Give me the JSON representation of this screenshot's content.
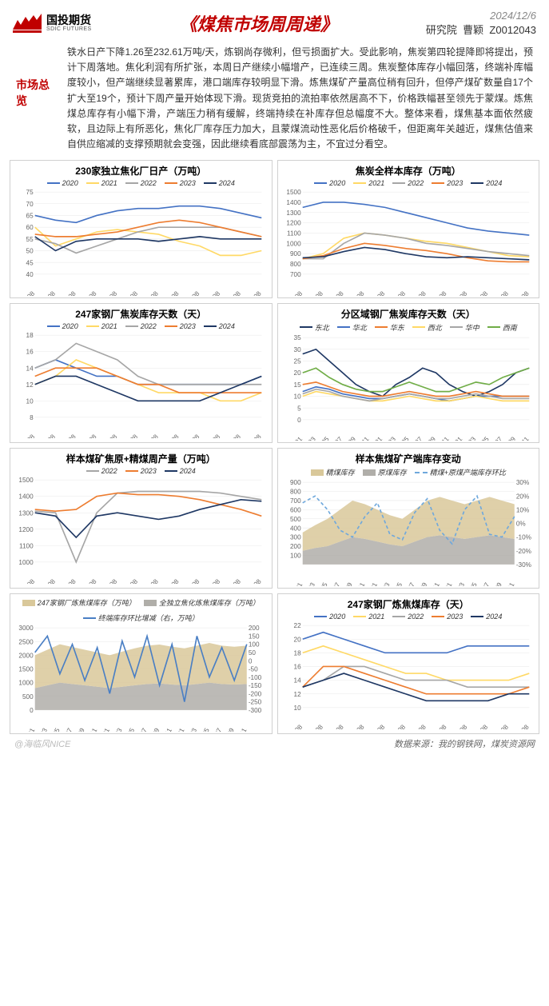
{
  "header": {
    "logo_cn": "国投期货",
    "logo_en": "SDIC FUTURES",
    "title": "《煤焦市场周周递》",
    "date": "2024/12/6",
    "dept": "研究院",
    "author": "曹颖",
    "code": "Z0012043"
  },
  "overview": {
    "label": "市场总览",
    "text": "铁水日产下降1.26至232.61万吨/天，炼钢尚存微利，但亏损面扩大。受此影响，焦炭第四轮提降即将提出，预计下周落地。焦化利润有所扩张，本周日产继续小幅增产，已连续三周。焦炭整体库存小幅回落，终端补库幅度较小，但产端继续显著累库，港口端库存较明显下滑。炼焦煤矿产量高位稍有回升，但停产煤矿数量自17个扩大至19个，预计下周产量开始体现下滑。现货竞拍的流拍率依然居高不下，价格跌幅甚至领先于蒙煤。炼焦煤总库存有小幅下滑，产端压力稍有缓解，终端持续在补库存但总幅度不大。整体来看，煤焦基本面依然疲软，且边际上有所恶化，焦化厂库存压力加大，且蒙煤流动性恶化后价格破千，但距离年关越近，煤焦估值来自供应缩减的支撑预期就会变强，因此继续看底部震荡为主，不宜过分看空。"
  },
  "colors": {
    "c2020": "#4472c4",
    "c2021": "#ffd966",
    "c2022": "#a6a6a6",
    "c2023": "#ed7d31",
    "c2024": "#1f3864",
    "grid": "#e8e8e8",
    "axis": "#666666",
    "area_beige": "#d9c89a",
    "area_gray": "#b0aea9",
    "line_blue": "#4a7fc4",
    "dash_blue": "#6fa8dc",
    "r_ne": "#1f3864",
    "r_nc": "#4472c4",
    "r_ec": "#ed7d31",
    "r_nw": "#ffd966",
    "r_cc": "#a6a6a6",
    "r_sw": "#70ad47"
  },
  "months": [
    "01-08",
    "02-08",
    "03-08",
    "04-08",
    "05-08",
    "06-08",
    "07-08",
    "08-08",
    "09-08",
    "10-08",
    "11-08",
    "12-08"
  ],
  "long_months": [
    "2022-01",
    "2022-03",
    "2022-05",
    "2022-07",
    "2022-09",
    "2022-11",
    "2023-01",
    "2023-03",
    "2023-05",
    "2023-07",
    "2023-09",
    "2023-11",
    "2024-01",
    "2024-03",
    "2024-05",
    "2024-07",
    "2024-09",
    "2024-11"
  ],
  "charts": {
    "c1": {
      "title": "230家独立焦化厂日产（万吨）",
      "ylim": [
        40,
        75
      ],
      "yticks": [
        40,
        45,
        50,
        55,
        60,
        65,
        70,
        75
      ],
      "series": {
        "2020": [
          65,
          63,
          62,
          65,
          67,
          68,
          68,
          69,
          69,
          68,
          66,
          64
        ],
        "2021": [
          60,
          52,
          55,
          58,
          59,
          58,
          57,
          54,
          52,
          48,
          48,
          50
        ],
        "2022": [
          55,
          53,
          49,
          52,
          55,
          58,
          60,
          60,
          60,
          60,
          58,
          56
        ],
        "2023": [
          57,
          56,
          56,
          57,
          58,
          60,
          62,
          63,
          62,
          60,
          58,
          56
        ],
        "2024": [
          56,
          50,
          54,
          55,
          55,
          55,
          54,
          55,
          56,
          55,
          55,
          55
        ]
      }
    },
    "c2": {
      "title": "焦炭全样本库存（万吨）",
      "ylim": [
        700,
        1500
      ],
      "yticks": [
        700,
        800,
        900,
        1000,
        1100,
        1200,
        1300,
        1400,
        1500
      ],
      "series": {
        "2020": [
          1350,
          1400,
          1400,
          1380,
          1350,
          1300,
          1250,
          1200,
          1150,
          1120,
          1100,
          1080
        ],
        "2021": [
          850,
          900,
          1050,
          1100,
          1080,
          1050,
          1020,
          1000,
          960,
          920,
          880,
          870
        ],
        "2022": [
          850,
          850,
          1000,
          1100,
          1080,
          1050,
          1000,
          980,
          950,
          920,
          900,
          880
        ],
        "2023": [
          850,
          880,
          950,
          1000,
          980,
          950,
          930,
          900,
          860,
          830,
          820,
          820
        ],
        "2024": [
          860,
          870,
          920,
          960,
          940,
          900,
          870,
          860,
          870,
          860,
          850,
          840
        ]
      }
    },
    "c3": {
      "title": "247家钢厂焦炭库存天数（天）",
      "ylim": [
        8,
        18
      ],
      "yticks": [
        8,
        10,
        12,
        14,
        16,
        18
      ],
      "series": {
        "2020": [
          14,
          15,
          14,
          13,
          13,
          12,
          12,
          12,
          12,
          12,
          12,
          13
        ],
        "2021": [
          12,
          13,
          15,
          14,
          13,
          12,
          11,
          11,
          11,
          10,
          10,
          11
        ],
        "2022": [
          14,
          15,
          17,
          16,
          15,
          13,
          12,
          12,
          12,
          12,
          12,
          12
        ],
        "2023": [
          13,
          14,
          14,
          14,
          13,
          12,
          12,
          11,
          11,
          11,
          11,
          11
        ],
        "2024": [
          12,
          13,
          13,
          12,
          11,
          10,
          10,
          10,
          10,
          11,
          12,
          13
        ]
      }
    },
    "c4": {
      "title": "分区域钢厂焦炭库存天数（天）",
      "ylim": [
        0,
        35
      ],
      "yticks": [
        0,
        5,
        10,
        15,
        20,
        25,
        30,
        35
      ],
      "legend": [
        {
          "k": "r_ne",
          "t": "东北"
        },
        {
          "k": "r_nc",
          "t": "华北"
        },
        {
          "k": "r_ec",
          "t": "华东"
        },
        {
          "k": "r_nw",
          "t": "西北"
        },
        {
          "k": "r_cc",
          "t": "华中"
        },
        {
          "k": "r_sw",
          "t": "西南"
        }
      ],
      "series": {
        "r_ne": [
          28,
          30,
          25,
          20,
          15,
          12,
          10,
          15,
          18,
          22,
          20,
          15,
          12,
          10,
          12,
          15,
          20,
          22
        ],
        "r_nc": [
          12,
          14,
          13,
          11,
          10,
          9,
          9,
          10,
          11,
          10,
          9,
          8,
          9,
          10,
          10,
          10,
          10,
          10
        ],
        "r_ec": [
          15,
          16,
          14,
          12,
          11,
          10,
          10,
          11,
          12,
          11,
          10,
          10,
          11,
          12,
          11,
          10,
          10,
          10
        ],
        "r_nw": [
          10,
          12,
          11,
          10,
          9,
          8,
          8,
          9,
          10,
          9,
          8,
          8,
          9,
          10,
          9,
          8,
          8,
          8
        ],
        "r_cc": [
          11,
          13,
          12,
          10,
          9,
          8,
          9,
          10,
          11,
          10,
          9,
          9,
          10,
          11,
          10,
          9,
          9,
          9
        ],
        "r_sw": [
          20,
          22,
          18,
          15,
          13,
          12,
          12,
          14,
          16,
          14,
          12,
          12,
          14,
          16,
          15,
          18,
          20,
          22
        ]
      }
    },
    "c5": {
      "title": "样本煤矿焦原+精煤周产量（万吨）",
      "ylim": [
        1000,
        1500
      ],
      "yticks": [
        1000,
        1100,
        1200,
        1300,
        1400,
        1500
      ],
      "series": {
        "2022": [
          1310,
          1300,
          1000,
          1300,
          1420,
          1430,
          1430,
          1430,
          1430,
          1420,
          1400,
          1380
        ],
        "2023": [
          1320,
          1310,
          1320,
          1400,
          1420,
          1410,
          1410,
          1400,
          1380,
          1350,
          1320,
          1280
        ],
        "2024": [
          1300,
          1280,
          1150,
          1280,
          1300,
          1280,
          1260,
          1280,
          1320,
          1350,
          1380,
          1370
        ]
      }
    },
    "c6": {
      "title": "样本焦煤矿产端库存变动",
      "ylim": [
        0,
        900
      ],
      "yticks": [
        100,
        200,
        300,
        400,
        500,
        600,
        700,
        800,
        900
      ],
      "ylim2": [
        -30,
        30
      ],
      "yticks2": [
        -30,
        -20,
        -10,
        0,
        10,
        20,
        30
      ],
      "legend": [
        {
          "k": "area_beige",
          "t": "精煤库存",
          "type": "area"
        },
        {
          "k": "area_gray",
          "t": "原煤库存",
          "type": "area"
        },
        {
          "k": "dash_blue",
          "t": "精煤+原煤产端库存环比",
          "type": "dash"
        }
      ],
      "series": {
        "jing": [
          200,
          250,
          300,
          350,
          400,
          380,
          350,
          320,
          300,
          350,
          400,
          420,
          400,
          380,
          400,
          420,
          400,
          380
        ],
        "yuan": [
          150,
          180,
          200,
          250,
          300,
          280,
          250,
          220,
          200,
          250,
          300,
          320,
          300,
          280,
          300,
          320,
          300,
          280
        ],
        "ratio": [
          15,
          20,
          10,
          -5,
          -10,
          5,
          15,
          -8,
          -12,
          8,
          18,
          -5,
          -15,
          10,
          20,
          -8,
          -10,
          5
        ]
      }
    },
    "c7": {
      "title": "",
      "ylim": [
        0,
        3000
      ],
      "yticks": [
        0,
        500,
        1000,
        1500,
        2000,
        2500,
        3000
      ],
      "ylim2": [
        -300,
        200
      ],
      "yticks2": [
        -300,
        -250,
        -200,
        -150,
        -100,
        -50,
        0,
        50,
        100,
        150,
        200
      ],
      "legend": [
        {
          "k": "area_beige",
          "t": "247家钢厂炼焦煤库存（万吨）",
          "type": "area"
        },
        {
          "k": "area_gray",
          "t": "全独立焦化炼焦煤库存（万吨）",
          "type": "area"
        },
        {
          "k": "line_blue",
          "t": "终端库存环比增减（右，万吨）",
          "type": "line"
        }
      ],
      "series": {
        "steel": [
          1200,
          1300,
          1400,
          1350,
          1300,
          1250,
          1200,
          1280,
          1350,
          1400,
          1420,
          1380,
          1350,
          1400,
          1450,
          1400,
          1380,
          1400
        ],
        "coke": [
          800,
          900,
          1000,
          950,
          900,
          850,
          800,
          850,
          900,
          950,
          970,
          930,
          900,
          950,
          1000,
          950,
          930,
          950
        ],
        "delta": [
          50,
          150,
          -80,
          100,
          -120,
          80,
          -200,
          120,
          -100,
          150,
          -150,
          100,
          -250,
          150,
          -100,
          80,
          -120,
          100
        ]
      }
    },
    "c8": {
      "title": "247家钢厂炼焦煤库存（天）",
      "ylim": [
        10,
        22
      ],
      "yticks": [
        10,
        12,
        14,
        16,
        18,
        20,
        22
      ],
      "series": {
        "2020": [
          20,
          21,
          20,
          19,
          18,
          18,
          18,
          18,
          19,
          19,
          19,
          19
        ],
        "2021": [
          18,
          19,
          18,
          17,
          16,
          15,
          15,
          14,
          14,
          14,
          14,
          15
        ],
        "2022": [
          13,
          14,
          16,
          16,
          15,
          14,
          14,
          14,
          13,
          13,
          13,
          13
        ],
        "2023": [
          13,
          16,
          16,
          15,
          14,
          13,
          12,
          12,
          12,
          12,
          12,
          13
        ],
        "2024": [
          13,
          14,
          15,
          14,
          13,
          12,
          11,
          11,
          11,
          11,
          12,
          12
        ]
      }
    }
  },
  "footer": {
    "watermark": "@海临风NICE",
    "source": "数据来源：我的钢铁网，煤炭资源网"
  }
}
